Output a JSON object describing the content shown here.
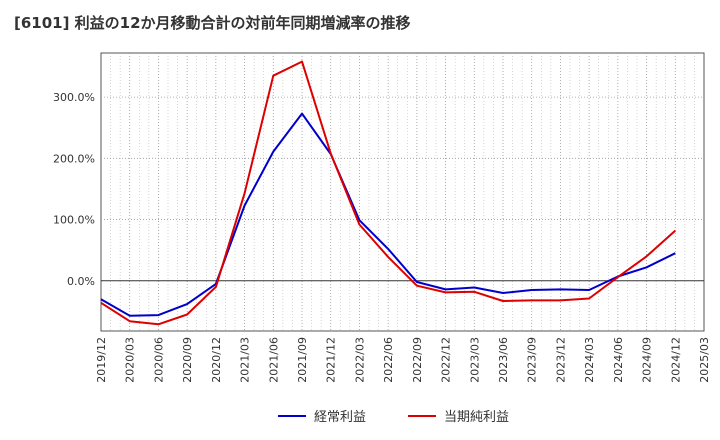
{
  "chart_data": {
    "type": "line",
    "title": "[6101]  利益の12か月移動合計の対前年同期増減率の推移",
    "xlabel": "",
    "ylabel": "",
    "x": [
      "2019/12",
      "2020/03",
      "2020/06",
      "2020/09",
      "2020/12",
      "2021/03",
      "2021/06",
      "2021/09",
      "2021/12",
      "2022/03",
      "2022/06",
      "2022/09",
      "2022/12",
      "2023/03",
      "2023/06",
      "2023/09",
      "2023/12",
      "2024/03",
      "2024/06",
      "2024/09",
      "2024/12"
    ],
    "x_ticks": [
      "2019/12",
      "2020/03",
      "2020/06",
      "2020/09",
      "2020/12",
      "2021/03",
      "2021/06",
      "2021/09",
      "2021/12",
      "2022/03",
      "2022/06",
      "2022/09",
      "2022/12",
      "2023/03",
      "2023/06",
      "2023/09",
      "2023/12",
      "2024/03",
      "2024/06",
      "2024/09",
      "2024/12",
      "2025/03"
    ],
    "y_ticks": [
      0,
      100,
      200,
      300
    ],
    "y_tick_labels": [
      "0.0%",
      "100.0%",
      "200.0%",
      "300.0%"
    ],
    "ylim": [
      -82,
      372
    ],
    "grid": true,
    "legend_position": "bottom",
    "series": [
      {
        "name": "経常利益",
        "color": "#0000cc",
        "values": [
          -30,
          -57,
          -56,
          -38,
          -5,
          123,
          211,
          273,
          207,
          99,
          52,
          -2,
          -14,
          -11,
          -20,
          -15,
          -14,
          -15,
          7,
          22,
          45
        ]
      },
      {
        "name": "当期純利益",
        "color": "#dd0000",
        "values": [
          -36,
          -66,
          -71,
          -55,
          -10,
          143,
          335,
          358,
          208,
          92,
          39,
          -8,
          -19,
          -18,
          -33,
          -32,
          -32,
          -29,
          6,
          40,
          82
        ]
      }
    ]
  }
}
